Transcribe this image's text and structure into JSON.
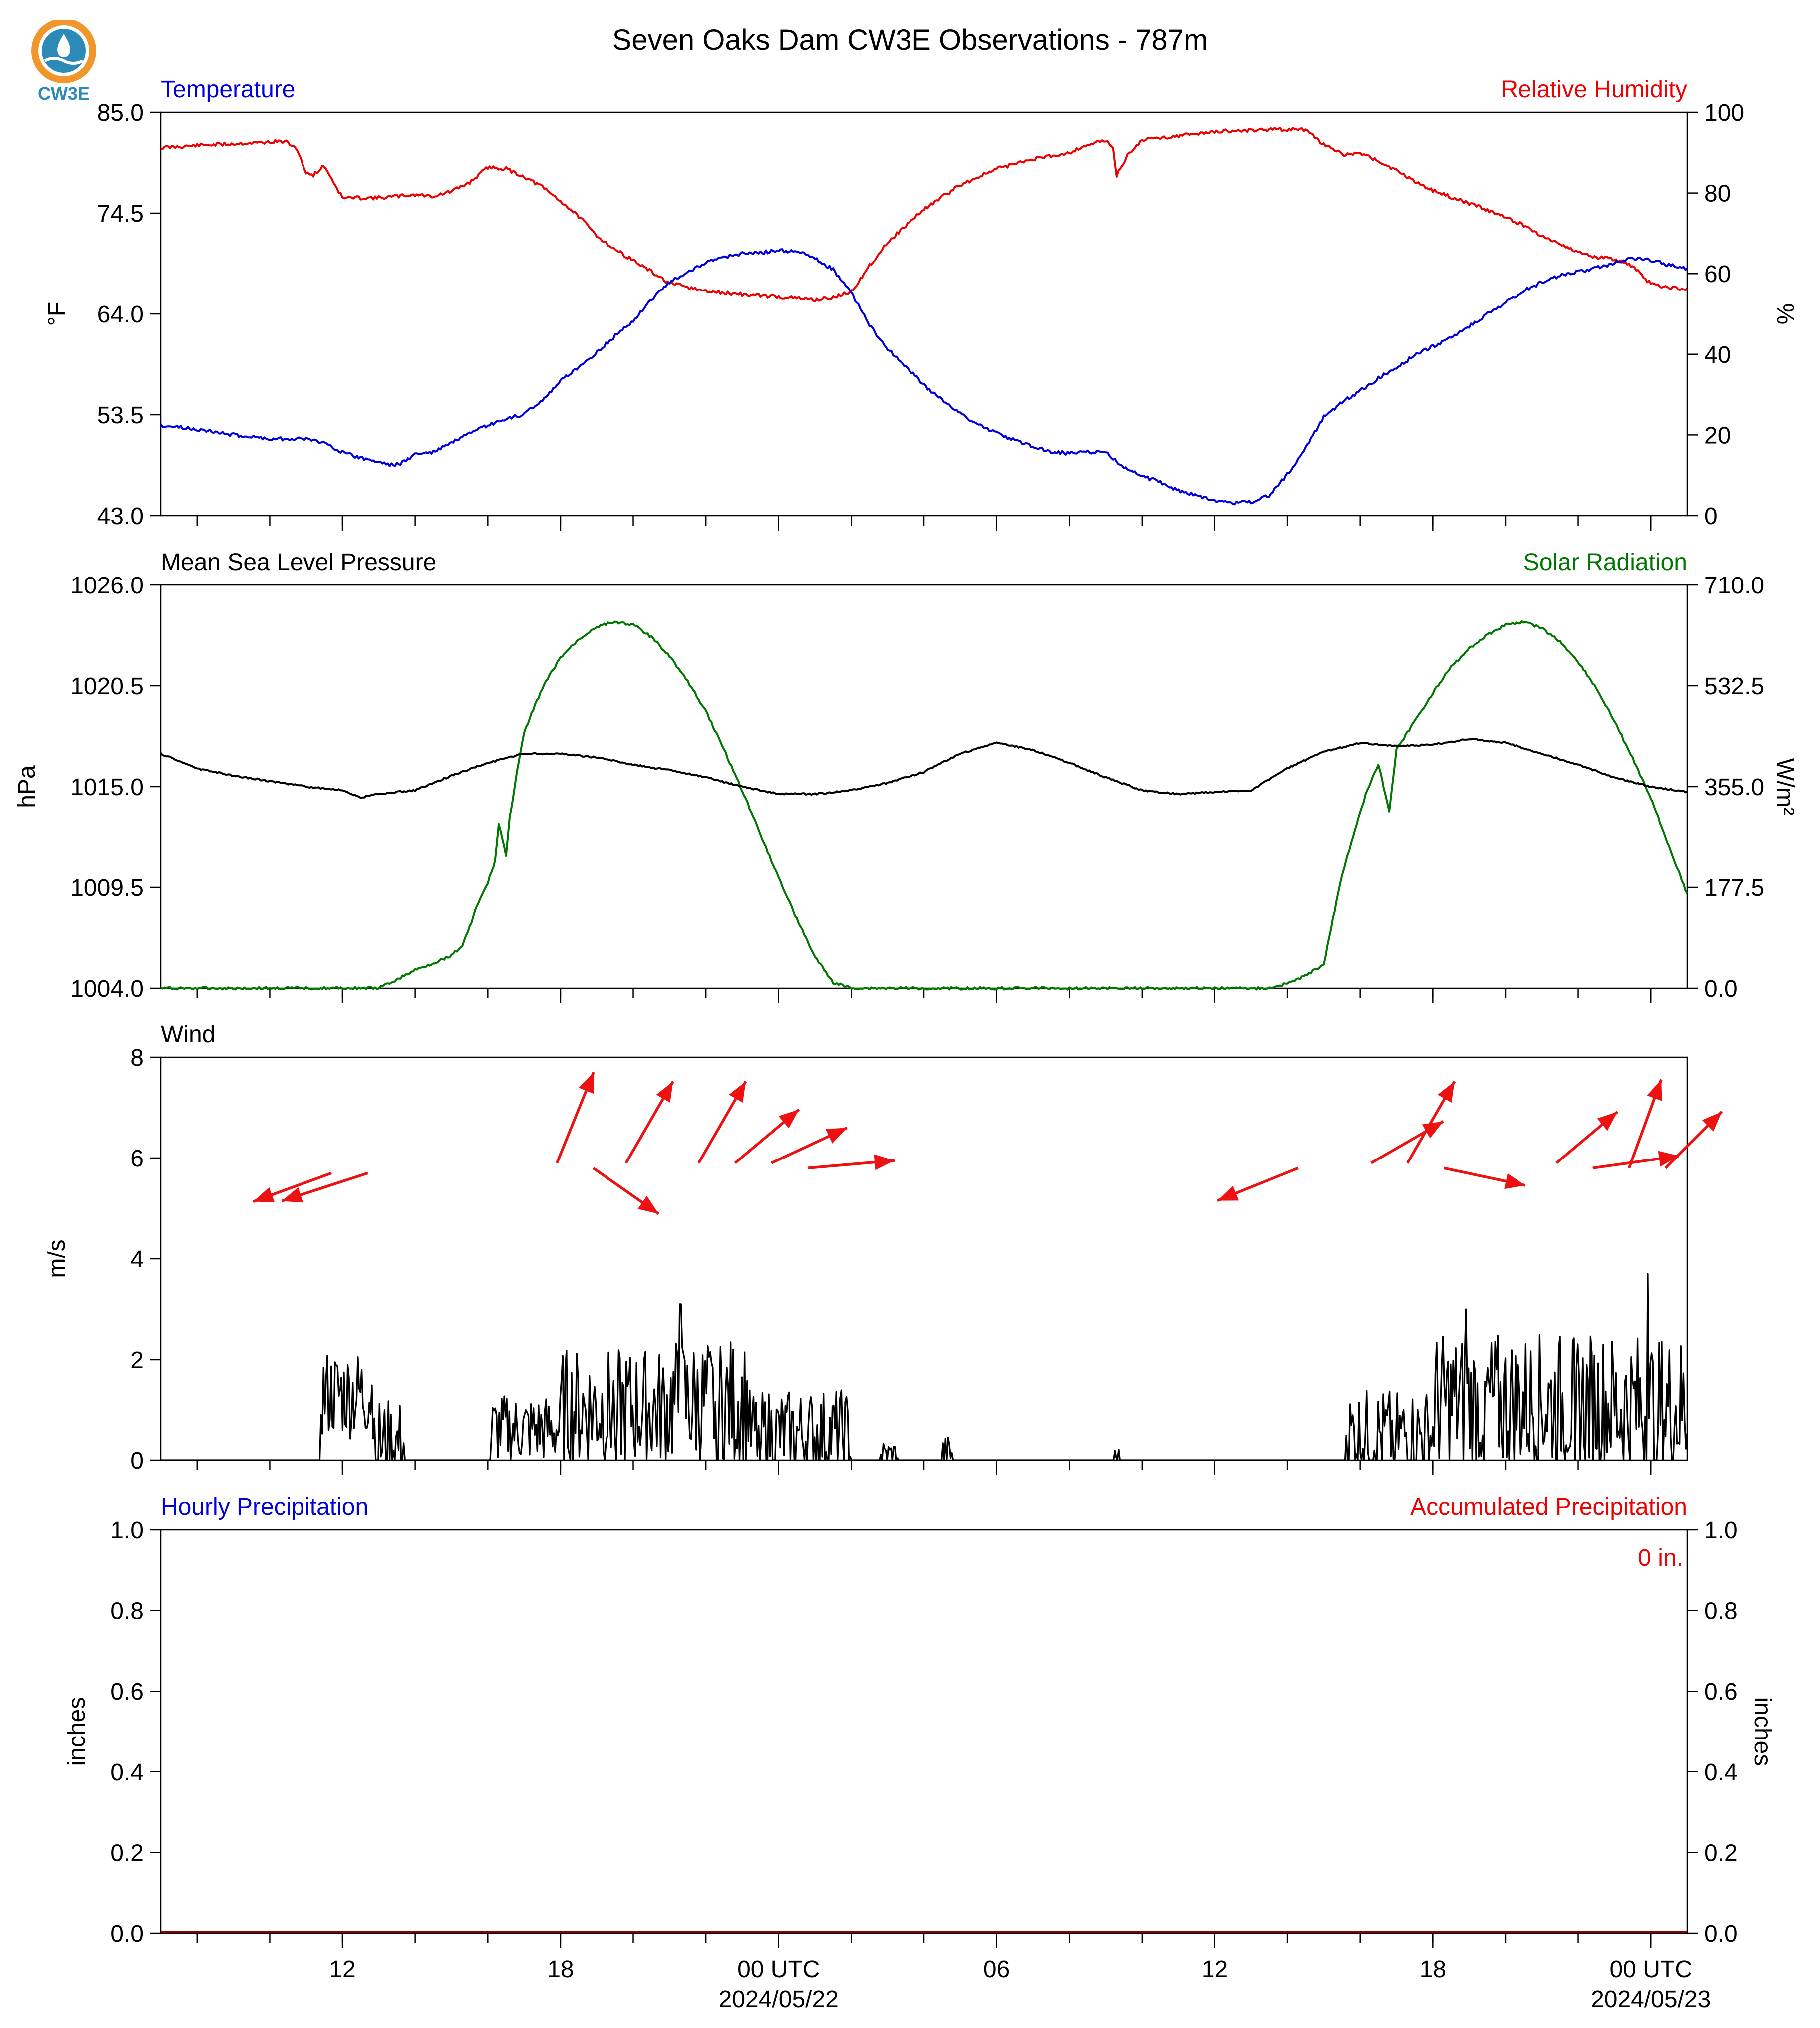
{
  "title": "Seven Oaks Dam CW3E Observations - 787m",
  "logo_text": "CW3E",
  "colors": {
    "temperature": "#0000dd",
    "humidity": "#ee0000",
    "pressure": "#000000",
    "solar": "#007700",
    "wind": "#000000",
    "arrows": "#ee1111",
    "accum": "#ee0000",
    "logo_orange": "#f0962a",
    "logo_blue": "#2c8ab8"
  },
  "x_axis": {
    "range_hours": [
      0,
      42
    ],
    "tick_labels": [
      {
        "label": "12",
        "hour": 5
      },
      {
        "label": "18",
        "hour": 11
      },
      {
        "label": "00 UTC",
        "hour": 17,
        "sub": "2024/05/22"
      },
      {
        "label": "06",
        "hour": 23
      },
      {
        "label": "12",
        "hour": 29
      },
      {
        "label": "18",
        "hour": 35
      },
      {
        "label": "00 UTC",
        "hour": 41,
        "sub": "2024/05/23"
      }
    ],
    "minor_tick_hours": [
      1,
      3,
      5,
      7,
      9,
      11,
      13,
      15,
      17,
      19,
      21,
      23,
      25,
      27,
      29,
      31,
      33,
      35,
      37,
      39,
      41
    ]
  },
  "chart_data": [
    {
      "type": "line",
      "panel": "temperature-humidity",
      "left_title": "Temperature",
      "right_title": "Relative Humidity",
      "ylabel_left": "°F",
      "ylabel_right": "%",
      "ylim_left": [
        43.0,
        85.0
      ],
      "ylim_right": [
        0,
        100
      ],
      "yticks_left": [
        "43.0",
        "53.5",
        "64.0",
        "74.5",
        "85.0"
      ],
      "yticks_right": [
        "0",
        "20",
        "40",
        "60",
        "80",
        "100"
      ],
      "series": [
        {
          "name": "Temperature",
          "axis": "left",
          "color_key": "temperature",
          "x": [
            0,
            1,
            2,
            3,
            4,
            4.5,
            5,
            5.5,
            6,
            6.3,
            6.6,
            7,
            7.5,
            8,
            9,
            10,
            10.5,
            11,
            11.5,
            12,
            12.5,
            13,
            13.5,
            14,
            15,
            16,
            16.5,
            17,
            17.5,
            18,
            18.5,
            19,
            19.5,
            20,
            21,
            21.5,
            22,
            22.5,
            23,
            23.5,
            24,
            24.5,
            25,
            25.5,
            26,
            26.5,
            27,
            27.5,
            28,
            28.5,
            29,
            29.5,
            30,
            30.5,
            31,
            31.5,
            32,
            32.5,
            33,
            33.5,
            34,
            34.5,
            35,
            35.5,
            36,
            36.5,
            37,
            37.5,
            38,
            38.5,
            39,
            39.5,
            40,
            40.5,
            41,
            41.5,
            42
          ],
          "y": [
            52.4,
            52.0,
            51.4,
            51.0,
            51.0,
            50.6,
            49.6,
            49.0,
            48.6,
            48.3,
            48.4,
            49.4,
            49.6,
            50.6,
            52.4,
            53.6,
            55.0,
            57.0,
            58.5,
            60.0,
            61.7,
            63.3,
            65.5,
            67.3,
            69.4,
            70.3,
            70.4,
            70.6,
            70.5,
            69.8,
            68.6,
            66.2,
            62.8,
            60.4,
            56.6,
            55.0,
            53.6,
            52.5,
            51.6,
            50.8,
            50.2,
            49.6,
            49.5,
            49.6,
            49.6,
            48.0,
            47.1,
            46.5,
            45.6,
            45.1,
            44.6,
            44.3,
            44.4,
            45.1,
            47.3,
            50.0,
            53.3,
            54.8,
            56.0,
            57.3,
            58.4,
            59.7,
            60.6,
            61.5,
            62.7,
            64.0,
            65.2,
            66.4,
            67.3,
            68.0,
            68.4,
            68.8,
            69.3,
            69.8,
            69.6,
            69.1,
            68.7
          ]
        },
        {
          "name": "Relative Humidity",
          "axis": "right",
          "color_key": "humidity",
          "x": [
            0,
            1,
            2,
            3,
            3.2,
            3.5,
            3.8,
            4.0,
            4.2,
            4.5,
            5,
            6,
            7,
            7.5,
            8,
            8.5,
            9,
            9.5,
            10,
            10.5,
            11,
            11.5,
            12,
            12.5,
            13,
            14,
            15,
            16,
            17,
            18,
            18.5,
            19,
            19.5,
            20,
            21,
            22,
            23,
            24,
            25,
            25.5,
            26,
            26.2,
            26.3,
            26.6,
            27,
            28,
            29,
            30,
            31,
            31.5,
            32,
            32.5,
            33,
            33.5,
            34,
            34.5,
            35,
            35.5,
            36,
            36.5,
            37,
            37.5,
            38,
            38.5,
            39,
            39.5,
            40,
            40.5,
            41,
            41.5,
            42
          ],
          "y": [
            91.2,
            91.8,
            92.2,
            92.6,
            92.8,
            92.6,
            90.0,
            84.8,
            84.5,
            86.8,
            78.8,
            78.8,
            79.6,
            79.2,
            80.4,
            82.6,
            86.4,
            86.0,
            84.0,
            81.5,
            78.0,
            74.2,
            69.4,
            66.0,
            63.3,
            57.6,
            55.6,
            54.8,
            54.2,
            53.5,
            54.0,
            55.5,
            62.0,
            67.8,
            76.0,
            82.0,
            86.0,
            88.4,
            90.0,
            92.0,
            93.0,
            91.0,
            84.4,
            89.4,
            93.2,
            94.2,
            95.2,
            95.6,
            95.8,
            95.6,
            92.0,
            89.6,
            89.8,
            88.0,
            85.5,
            83.0,
            80.6,
            79.0,
            77.4,
            75.8,
            74.0,
            72.0,
            69.4,
            67.4,
            65.4,
            64.0,
            63.6,
            61.8,
            57.4,
            56.6,
            56.2
          ]
        }
      ]
    },
    {
      "type": "line",
      "panel": "pressure-solar",
      "left_title": "Mean Sea Level Pressure",
      "right_title": "Solar Radiation",
      "ylabel_left": "hPa",
      "ylabel_right": "W/m²",
      "ylim_left": [
        1004.0,
        1026.0
      ],
      "ylim_right": [
        0.0,
        710.0
      ],
      "yticks_left": [
        "1004.0",
        "1009.5",
        "1015.0",
        "1020.5",
        "1026.0"
      ],
      "yticks_right": [
        "0.0",
        "177.5",
        "355.0",
        "532.5",
        "710.0"
      ],
      "series": [
        {
          "name": "Mean Sea Level Pressure",
          "axis": "left",
          "color_key": "pressure",
          "x": [
            0,
            1,
            2,
            3,
            4,
            5,
            5.5,
            6,
            7,
            8,
            9,
            10,
            11,
            12,
            13,
            14,
            15,
            16,
            17,
            18,
            19,
            20,
            21,
            22,
            23,
            24,
            25,
            26,
            27,
            28,
            29,
            30,
            31,
            32,
            33,
            34,
            35,
            36,
            37,
            38,
            39,
            40,
            41,
            42
          ],
          "y": [
            1016.8,
            1016.0,
            1015.6,
            1015.3,
            1015.0,
            1014.8,
            1014.4,
            1014.6,
            1014.8,
            1015.6,
            1016.3,
            1016.8,
            1016.8,
            1016.6,
            1016.2,
            1015.9,
            1015.5,
            1015.0,
            1014.6,
            1014.6,
            1014.8,
            1015.2,
            1015.8,
            1016.8,
            1017.4,
            1017.0,
            1016.3,
            1015.5,
            1014.8,
            1014.6,
            1014.7,
            1014.8,
            1016.0,
            1016.9,
            1017.4,
            1017.2,
            1017.3,
            1017.6,
            1017.4,
            1016.8,
            1016.2,
            1015.5,
            1015.0,
            1014.7
          ]
        },
        {
          "name": "Solar Radiation",
          "axis": "right",
          "color_key": "solar",
          "x": [
            0,
            6,
            6.5,
            7,
            7.5,
            8,
            8.3,
            8.5,
            8.7,
            9,
            9.2,
            9.3,
            9.5,
            9.6,
            9.8,
            10,
            10.3,
            10.6,
            11,
            11.5,
            12,
            12.5,
            13,
            13.5,
            14,
            14.5,
            15,
            15.5,
            16,
            16.5,
            17,
            17.5,
            18,
            18.5,
            19,
            19.5,
            20,
            21,
            25,
            30,
            30.5,
            31,
            31.5,
            32,
            32.5,
            33,
            33.2,
            33.5,
            33.8,
            34,
            34.5,
            35,
            35.5,
            36,
            36.5,
            37,
            37.5,
            38,
            38.5,
            39,
            39.5,
            40,
            40.5,
            41,
            41.5,
            42
          ],
          "y": [
            0,
            0,
            15,
            32,
            44,
            58,
            75,
            108,
            145,
            185,
            225,
            290,
            235,
            300,
            380,
            450,
            500,
            540,
            582,
            614,
            637,
            645,
            640,
            618,
            585,
            540,
            488,
            420,
            348,
            272,
            195,
            122,
            55,
            10,
            0,
            0,
            0,
            0,
            0,
            0,
            0,
            8,
            22,
            42,
            200,
            310,
            350,
            395,
            312,
            420,
            470,
            520,
            565,
            598,
            622,
            640,
            645,
            634,
            610,
            575,
            528,
            470,
            405,
            335,
            250,
            165
          ]
        }
      ]
    },
    {
      "type": "bar",
      "panel": "wind",
      "left_title": "Wind",
      "ylabel_left": "m/s",
      "ylim_left": [
        0,
        8
      ],
      "yticks_left": [
        "0",
        "2",
        "4",
        "6",
        "8"
      ],
      "series": [
        {
          "name": "Wind",
          "color_key": "wind",
          "segments": [
            {
              "x": [
                4.4,
                5.9
              ],
              "base": 1.3,
              "amp": 0.9
            },
            {
              "x": [
                6.0,
                6.7
              ],
              "base": 0.3,
              "amp": 0.9
            },
            {
              "x": [
                9.1,
                11.0
              ],
              "base": 0.6,
              "amp": 0.7
            },
            {
              "x": [
                11.0,
                14.0
              ],
              "base": 1.0,
              "amp": 1.2
            },
            {
              "x": [
                14.0,
                16.2
              ],
              "base": 1.1,
              "amp": 1.3
            },
            {
              "x": [
                16.2,
                19.0
              ],
              "base": 0.5,
              "amp": 0.9
            },
            {
              "x": [
                19.8,
                20.3
              ],
              "base": 0.1,
              "amp": 0.3
            },
            {
              "x": [
                21.5,
                21.8
              ],
              "base": 0.1,
              "amp": 0.4
            },
            {
              "x": [
                26.2,
                26.4
              ],
              "base": 0.05,
              "amp": 0.2
            },
            {
              "x": [
                32.6,
                35.0
              ],
              "base": 0.5,
              "amp": 0.9
            },
            {
              "x": [
                35.0,
                40.0
              ],
              "base": 1.1,
              "amp": 1.4
            },
            {
              "x": [
                40.0,
                42.0
              ],
              "base": 1.0,
              "amp": 1.5
            }
          ],
          "peaks": [
            {
              "x": 40.9,
              "y": 3.7
            },
            {
              "x": 14.3,
              "y": 3.1
            },
            {
              "x": 35.9,
              "y": 3.0
            }
          ]
        }
      ],
      "wind_arrows": [
        {
          "x": 4.7,
          "y": 5.7,
          "dir_deg": 250,
          "len": 2.3
        },
        {
          "x": 5.7,
          "y": 5.7,
          "dir_deg": 252,
          "len": 2.5
        },
        {
          "x": 10.9,
          "y": 5.9,
          "dir_deg": 22,
          "len": 2.7
        },
        {
          "x": 12.8,
          "y": 5.9,
          "dir_deg": 30,
          "len": 2.6
        },
        {
          "x": 14.8,
          "y": 5.9,
          "dir_deg": 30,
          "len": 2.6
        },
        {
          "x": 15.8,
          "y": 5.9,
          "dir_deg": 50,
          "len": 2.3
        },
        {
          "x": 16.8,
          "y": 5.9,
          "dir_deg": 65,
          "len": 2.3
        },
        {
          "x": 17.8,
          "y": 5.8,
          "dir_deg": 85,
          "len": 2.4
        },
        {
          "x": 11.9,
          "y": 5.8,
          "dir_deg": 125,
          "len": 2.2
        },
        {
          "x": 31.3,
          "y": 5.8,
          "dir_deg": 248,
          "len": 2.4
        },
        {
          "x": 33.3,
          "y": 5.9,
          "dir_deg": 60,
          "len": 2.3
        },
        {
          "x": 34.3,
          "y": 5.9,
          "dir_deg": 30,
          "len": 2.6
        },
        {
          "x": 35.3,
          "y": 5.8,
          "dir_deg": 102,
          "len": 2.3
        },
        {
          "x": 38.4,
          "y": 5.9,
          "dir_deg": 50,
          "len": 2.2
        },
        {
          "x": 39.4,
          "y": 5.8,
          "dir_deg": 82,
          "len": 2.4
        },
        {
          "x": 40.4,
          "y": 5.8,
          "dir_deg": 20,
          "len": 2.6
        },
        {
          "x": 41.4,
          "y": 5.8,
          "dir_deg": 45,
          "len": 2.2
        }
      ]
    },
    {
      "type": "bar",
      "panel": "precipitation",
      "left_title": "Hourly Precipitation",
      "right_title": "Accumulated Precipitation",
      "ylabel_left": "inches",
      "ylabel_right": "inches",
      "ylim_left": [
        0.0,
        1.0
      ],
      "ylim_right": [
        0.0,
        1.0
      ],
      "yticks_left": [
        "0.0",
        "0.2",
        "0.4",
        "0.6",
        "0.8",
        "1.0"
      ],
      "yticks_right": [
        "0.0",
        "0.2",
        "0.4",
        "0.6",
        "0.8",
        "1.0"
      ],
      "accum_label": "0 in.",
      "series": [
        {
          "name": "Hourly Precipitation",
          "x": [
            0,
            42
          ],
          "values": [
            0,
            0
          ]
        },
        {
          "name": "Accumulated Precipitation",
          "x": [
            0,
            42
          ],
          "values": [
            0,
            0
          ]
        }
      ]
    }
  ]
}
